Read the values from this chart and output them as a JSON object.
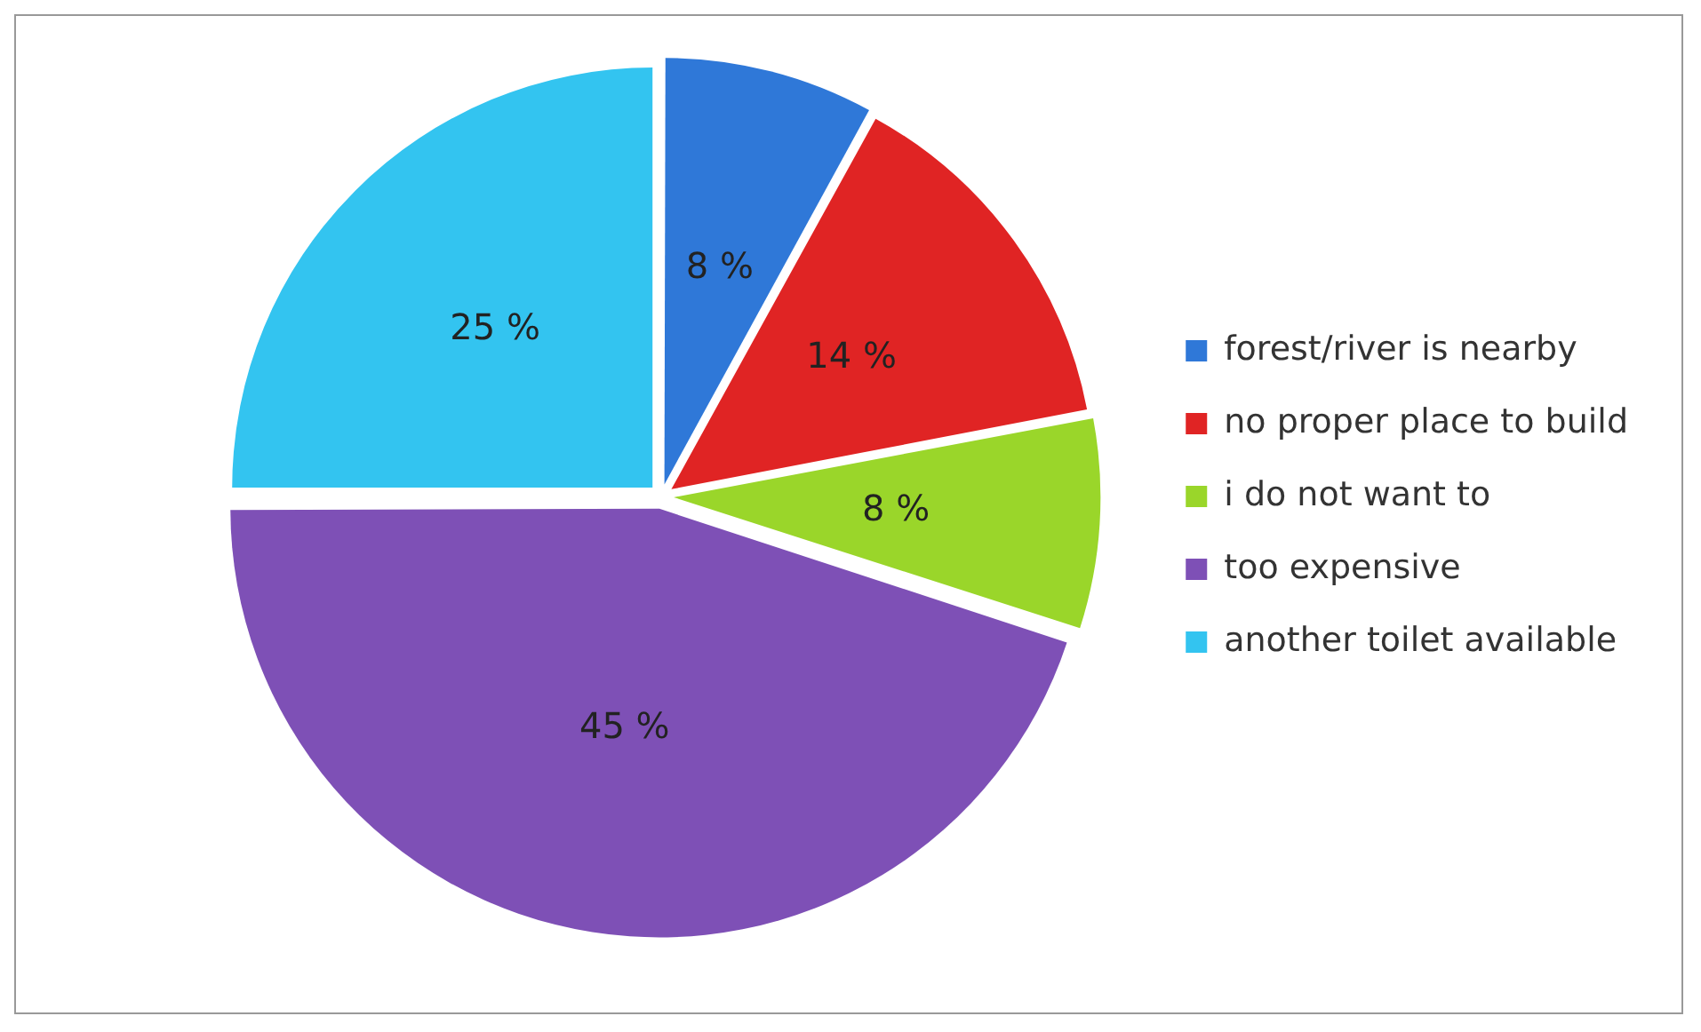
{
  "chart_data": {
    "type": "pie",
    "categories": [
      "forest/river is nearby",
      "no proper place to build",
      "i do not want to",
      "too expensive",
      "another toilet available"
    ],
    "values": [
      8,
      14,
      8,
      45,
      25
    ],
    "colors": [
      "#2f78d8",
      "#e02424",
      "#9ad62a",
      "#7e50b6",
      "#33c4f0"
    ],
    "value_labels": [
      "8 %",
      "14 %",
      "8 %",
      "45 %",
      "25 %"
    ],
    "legend": "right"
  }
}
